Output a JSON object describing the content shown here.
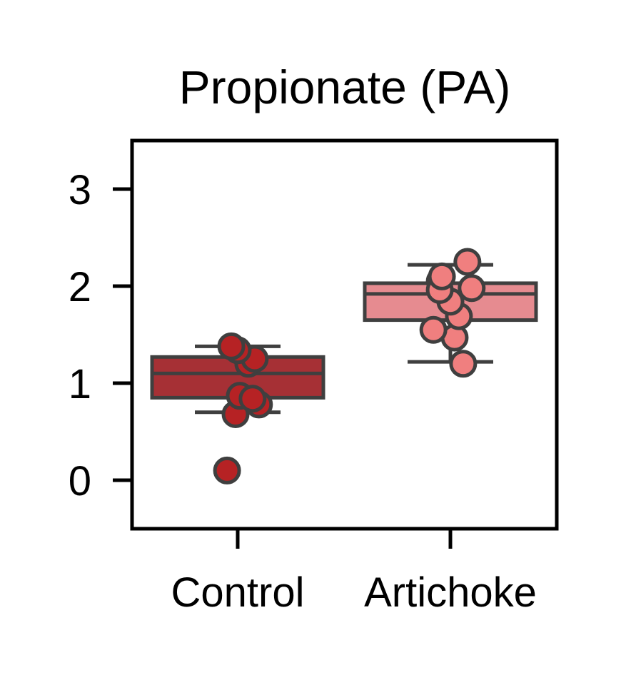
{
  "chart_data": {
    "type": "box",
    "title": "Propionate (PA)",
    "xlabel": "",
    "ylabel": "",
    "categories": [
      "Control",
      "Artichoke"
    ],
    "ylim": [
      -0.5,
      3.5
    ],
    "yticks": [
      0,
      1,
      2,
      3
    ],
    "grid": false,
    "legend": "none",
    "boxes": [
      {
        "name": "Control",
        "q1": 0.85,
        "median": 1.1,
        "q3": 1.27,
        "whisker_low": 0.7,
        "whisker_high": 1.38,
        "fill": "#a63035",
        "point_fill": "#b62224",
        "points": [
          {
            "offset": -0.05,
            "y": 0.1
          },
          {
            "offset": -0.01,
            "y": 0.68
          },
          {
            "offset": 0.1,
            "y": 0.78
          },
          {
            "offset": 0.01,
            "y": 0.87
          },
          {
            "offset": 0.07,
            "y": 0.84
          },
          {
            "offset": 0.05,
            "y": 1.2
          },
          {
            "offset": 0.08,
            "y": 1.25
          },
          {
            "offset": 0.0,
            "y": 1.34
          },
          {
            "offset": -0.03,
            "y": 1.38
          }
        ]
      },
      {
        "name": "Artichoke",
        "q1": 1.65,
        "median": 1.92,
        "q3": 2.03,
        "whisker_low": 1.22,
        "whisker_high": 2.22,
        "fill": "#e68b90",
        "point_fill": "#f07f7f",
        "points": [
          {
            "offset": 0.06,
            "y": 1.2
          },
          {
            "offset": 0.02,
            "y": 1.47
          },
          {
            "offset": -0.08,
            "y": 1.55
          },
          {
            "offset": 0.04,
            "y": 1.69
          },
          {
            "offset": 0.0,
            "y": 1.84
          },
          {
            "offset": 0.1,
            "y": 1.98
          },
          {
            "offset": -0.05,
            "y": 2.05
          },
          {
            "offset": -0.05,
            "y": 1.96
          },
          {
            "offset": -0.04,
            "y": 2.1
          },
          {
            "offset": 0.08,
            "y": 2.25
          }
        ]
      }
    ],
    "colors": {
      "edge": "#3f3f3f",
      "axis": "#000000"
    }
  }
}
